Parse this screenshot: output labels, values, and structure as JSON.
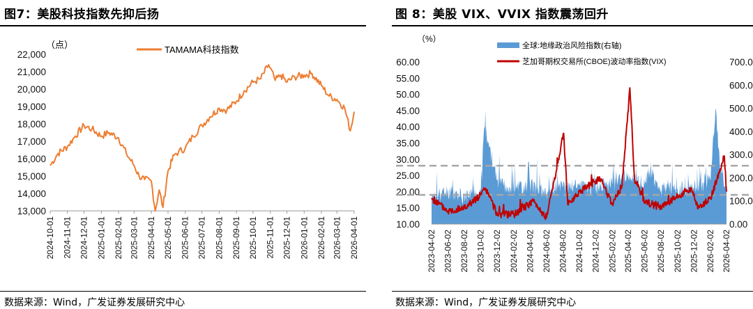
{
  "left_panel": {
    "title": "图7：美股科技指数先抑后扬",
    "source": "数据来源：Wind，广发证券发展研究中心"
  },
  "right_panel": {
    "title": "图 8：美股 VIX、VVIX 指数震荡回升",
    "source": "数据来源：Wind，广发证券发展研究中心"
  },
  "chart_data": [
    {
      "type": "line",
      "unit_label": "（点）",
      "series": [
        {
          "name": "TAMAMA科技指数",
          "color": "#ED7D31",
          "x": [
            "2024-10-01",
            "2024-10-15",
            "2024-11-01",
            "2024-11-15",
            "2024-12-01",
            "2024-12-15",
            "2025-01-01",
            "2025-01-15",
            "2025-02-01",
            "2025-02-15",
            "2025-03-01",
            "2025-03-10",
            "2025-03-20",
            "2025-04-01",
            "2025-04-08",
            "2025-04-15",
            "2025-04-22",
            "2025-05-01",
            "2025-05-12",
            "2025-05-20",
            "2025-06-01",
            "2025-06-15",
            "2025-07-01",
            "2025-07-15",
            "2025-08-01",
            "2025-08-15",
            "2025-09-01",
            "2025-09-15",
            "2025-10-01",
            "2025-10-15",
            "2025-10-29",
            "2025-11-10",
            "2025-11-20",
            "2025-12-01",
            "2025-12-15",
            "2026-01-01",
            "2026-01-15",
            "2026-02-01",
            "2026-02-15",
            "2026-03-01",
            "2026-03-15",
            "2026-03-25",
            "2026-04-01"
          ],
          "y": [
            15600,
            16300,
            16700,
            17300,
            17900,
            17700,
            17300,
            17500,
            17200,
            16300,
            15600,
            15000,
            14800,
            14700,
            13000,
            14200,
            13200,
            15300,
            16200,
            16400,
            16600,
            17300,
            17900,
            18400,
            18900,
            18800,
            19300,
            19900,
            20400,
            20600,
            21400,
            20500,
            20800,
            20400,
            20700,
            20800,
            20900,
            20200,
            19600,
            19400,
            18900,
            17600,
            18700
          ]
        }
      ],
      "x_ticks": [
        "2024-10-01",
        "2024-11-01",
        "2024-12-01",
        "2025-01-01",
        "2025-02-01",
        "2025-03-01",
        "2025-04-01",
        "2025-05-01",
        "2025-06-01",
        "2025-07-01",
        "2025-08-01",
        "2025-09-01",
        "2025-10-01",
        "2025-11-01",
        "2025-12-01",
        "2026-01-01",
        "2026-02-01",
        "2026-03-01",
        "2026-04-01"
      ],
      "y_ticks": [
        "13,000",
        "14,000",
        "15,000",
        "16,000",
        "17,000",
        "18,000",
        "19,000",
        "20,000",
        "21,000",
        "22,000"
      ],
      "ylim": [
        13000,
        22000
      ],
      "grid": false,
      "legend_position": "top-center"
    },
    {
      "type": "area+line",
      "unit_label": "（%）",
      "series": [
        {
          "name": "全球:地缘政治风险指数(右轴)",
          "color": "#5B9BD5",
          "axis": "right",
          "x": [
            "2023-04-02",
            "2023-06-02",
            "2023-08-02",
            "2023-10-02",
            "2023-10-15",
            "2023-12-02",
            "2024-02-02",
            "2024-04-02",
            "2024-06-02",
            "2024-08-02",
            "2024-10-02",
            "2024-12-02",
            "2025-02-02",
            "2025-04-02",
            "2025-06-02",
            "2025-06-20",
            "2025-08-02",
            "2025-10-02",
            "2025-12-02",
            "2026-02-02",
            "2026-02-20",
            "2026-03-10",
            "2026-04-02"
          ],
          "y": [
            110,
            140,
            120,
            140,
            420,
            190,
            150,
            170,
            130,
            160,
            170,
            150,
            170,
            200,
            170,
            230,
            150,
            150,
            150,
            190,
            500,
            240,
            160
          ]
        },
        {
          "name": "芝加哥期权交易所(CBOE)波动率指数(VIX)",
          "color": "#C00000",
          "axis": "left",
          "x": [
            "2023-04-02",
            "2023-06-02",
            "2023-08-02",
            "2023-10-02",
            "2023-10-20",
            "2023-12-02",
            "2024-02-02",
            "2024-04-15",
            "2024-06-02",
            "2024-08-05",
            "2024-08-20",
            "2024-10-02",
            "2024-12-18",
            "2025-02-02",
            "2025-03-10",
            "2025-04-08",
            "2025-04-25",
            "2025-06-02",
            "2025-08-02",
            "2025-10-10",
            "2025-11-20",
            "2025-12-20",
            "2026-02-02",
            "2026-03-10",
            "2026-03-25",
            "2026-04-02"
          ],
          "y": [
            18,
            14,
            15,
            19,
            21,
            13,
            13,
            17,
            12,
            38,
            16,
            20,
            24,
            16,
            22,
            52,
            24,
            17,
            15,
            19,
            21,
            15,
            18,
            27,
            31,
            20
          ]
        }
      ],
      "x_ticks": [
        "2023-04-02",
        "2023-06-02",
        "2023-08-02",
        "2023-10-02",
        "2023-12-02",
        "2024-02-02",
        "2024-04-02",
        "2024-06-02",
        "2024-08-02",
        "2024-10-02",
        "2024-12-02",
        "2025-02-02",
        "2025-04-02",
        "2025-06-02",
        "2025-08-02",
        "2025-10-02",
        "2025-12-02",
        "2026-02-02",
        "2026-04-02"
      ],
      "y_ticks_left": [
        "10.00",
        "15.00",
        "20.00",
        "25.00",
        "30.00",
        "35.00",
        "40.00",
        "45.00",
        "50.00",
        "55.00",
        "60.00"
      ],
      "y_ticks_right": [
        "0.00",
        "100.0",
        "200.0",
        "300.0",
        "400.0",
        "500.0",
        "600.0",
        "700.0"
      ],
      "ylim_left": [
        10,
        60
      ],
      "ylim_right": [
        0,
        700
      ],
      "reference_lines_left": [
        28,
        19
      ],
      "grid": false,
      "legend_position": "top"
    }
  ]
}
